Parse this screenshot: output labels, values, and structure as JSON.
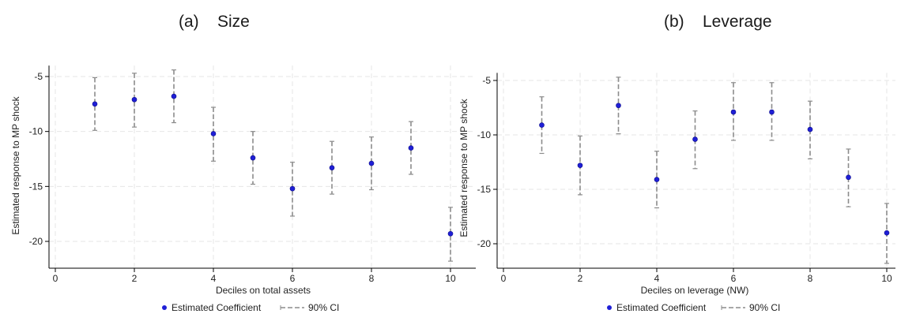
{
  "panels": {
    "a": {
      "title": "(a)    Size"
    },
    "b": {
      "title": "(b)    Leverage"
    }
  },
  "legend": {
    "point_label": "Estimated Coefficient",
    "ci_label": "90% CI"
  },
  "colors": {
    "point": "#1f1fd6",
    "ci": "#8c8c8c",
    "grid": "#e6e6e6",
    "axis": "#000000"
  },
  "chart_data": [
    {
      "type": "scatter",
      "title": "(a)    Size",
      "xlabel": "Deciles on total assets",
      "ylabel": "Estimated response to MP shock",
      "xlim": [
        0,
        10
      ],
      "ylim": [
        -22.5,
        -4
      ],
      "xticks": [
        0,
        2,
        4,
        6,
        8,
        10
      ],
      "yticks": [
        -5,
        -10,
        -15,
        -20
      ],
      "grid": true,
      "legend_position": "bottom",
      "series": [
        {
          "name": "Estimated Coefficient",
          "x": [
            1,
            2,
            3,
            4,
            5,
            6,
            7,
            8,
            9,
            10
          ],
          "y": [
            -7.5,
            -7.1,
            -6.8,
            -10.2,
            -12.4,
            -15.2,
            -13.3,
            -12.9,
            -11.5,
            -19.3
          ]
        }
      ],
      "ci_90": {
        "name": "90% CI",
        "lower": [
          -9.9,
          -9.6,
          -9.2,
          -12.7,
          -14.8,
          -17.7,
          -15.7,
          -15.3,
          -13.9,
          -21.8
        ],
        "upper": [
          -5.1,
          -4.7,
          -4.4,
          -7.8,
          -10.0,
          -12.8,
          -10.9,
          -10.5,
          -9.1,
          -16.9
        ]
      }
    },
    {
      "type": "scatter",
      "title": "(b)    Leverage",
      "xlabel": "Deciles on leverage (NW)",
      "ylabel": "Estimated response to MP shock",
      "xlim": [
        0,
        10
      ],
      "ylim": [
        -22.3,
        -4.3
      ],
      "xticks": [
        0,
        2,
        4,
        6,
        8,
        10
      ],
      "yticks": [
        -5,
        -10,
        -15,
        -20
      ],
      "grid": true,
      "legend_position": "bottom",
      "series": [
        {
          "name": "Estimated Coefficient",
          "x": [
            1,
            2,
            3,
            4,
            5,
            6,
            7,
            8,
            9,
            10
          ],
          "y": [
            -9.1,
            -12.8,
            -7.3,
            -14.1,
            -10.4,
            -7.9,
            -7.9,
            -9.5,
            -13.9,
            -19.0
          ]
        }
      ],
      "ci_90": {
        "name": "90% CI",
        "lower": [
          -11.7,
          -15.5,
          -9.9,
          -16.7,
          -13.1,
          -10.5,
          -10.5,
          -12.2,
          -16.6,
          -21.8
        ],
        "upper": [
          -6.5,
          -10.1,
          -4.7,
          -11.5,
          -7.8,
          -5.2,
          -5.2,
          -6.9,
          -11.3,
          -16.3
        ]
      }
    }
  ]
}
